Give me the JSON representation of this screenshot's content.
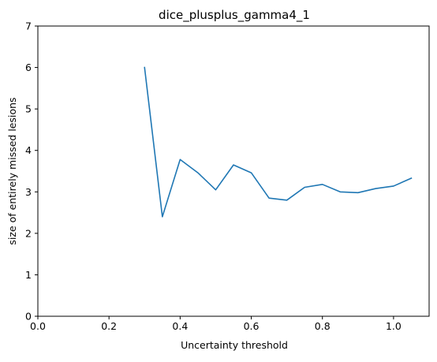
{
  "chart_data": {
    "type": "line",
    "title": "dice_plusplus_gamma4_1",
    "xlabel": "Uncertainty threshold",
    "ylabel": "size of entirely missed lesions",
    "xlim": [
      0.0,
      1.1
    ],
    "ylim": [
      0,
      7
    ],
    "xticks": [
      0.0,
      0.2,
      0.4,
      0.6,
      0.8,
      1.0
    ],
    "xtick_labels": [
      "0.0",
      "0.2",
      "0.4",
      "0.6",
      "0.8",
      "1.0"
    ],
    "yticks": [
      0,
      1,
      2,
      3,
      4,
      5,
      6,
      7
    ],
    "ytick_labels": [
      "0",
      "1",
      "2",
      "3",
      "4",
      "5",
      "6",
      "7"
    ],
    "grid": false,
    "series": [
      {
        "color": "#1f77b4",
        "x": [
          0.3,
          0.35,
          0.4,
          0.45,
          0.5,
          0.55,
          0.6,
          0.65,
          0.7,
          0.75,
          0.8,
          0.85,
          0.9,
          0.95,
          1.0,
          1.05
        ],
        "y": [
          6.0,
          2.4,
          3.78,
          3.46,
          3.05,
          3.65,
          3.46,
          2.85,
          2.8,
          3.11,
          3.18,
          3.0,
          2.98,
          3.08,
          3.14,
          3.33
        ]
      }
    ]
  }
}
